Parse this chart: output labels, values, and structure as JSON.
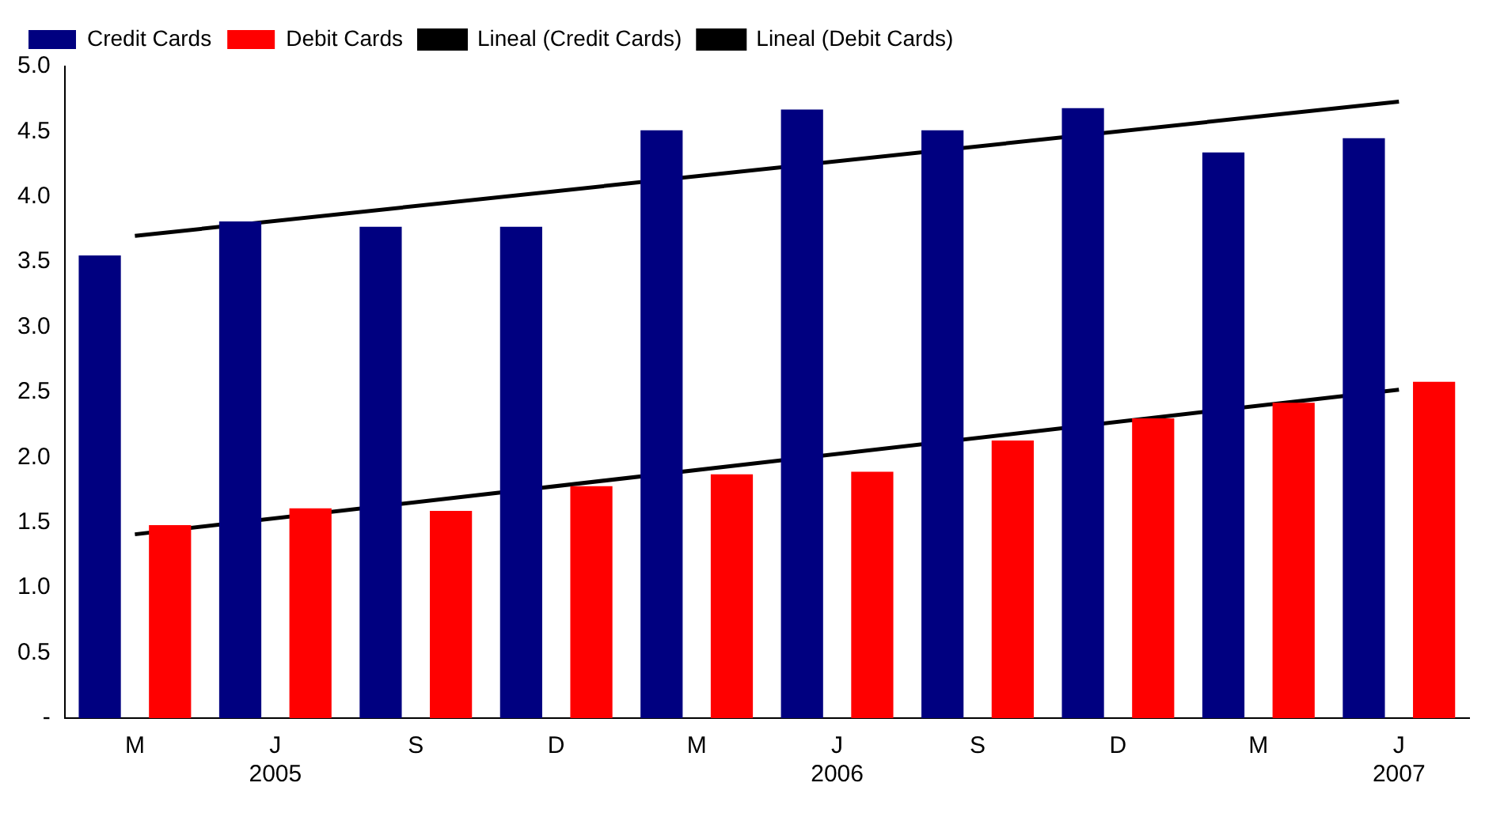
{
  "chart_data": {
    "type": "bar",
    "categories": [
      "M",
      "J\n2005",
      "S",
      "D",
      "M",
      "J\n2006",
      "S",
      "D",
      "M",
      "J\n2007"
    ],
    "series": [
      {
        "name": "Credit Cards",
        "color": "#000080",
        "values": [
          3.55,
          3.81,
          3.77,
          3.77,
          4.51,
          4.67,
          4.51,
          4.68,
          4.34,
          4.45
        ]
      },
      {
        "name": "Debit Cards",
        "color": "#ff0000",
        "values": [
          1.48,
          1.61,
          1.59,
          1.78,
          1.87,
          1.89,
          2.13,
          2.3,
          2.42,
          2.58
        ]
      },
      {
        "name": "Lineal (Credit Cards)",
        "type": "line",
        "color": "#000000",
        "values": [
          3.7,
          null,
          null,
          null,
          null,
          null,
          null,
          null,
          null,
          4.73
        ]
      },
      {
        "name": "Lineal (Debit Cards)",
        "type": "line",
        "color": "#000000",
        "values": [
          1.41,
          null,
          null,
          null,
          null,
          null,
          null,
          null,
          null,
          2.52
        ]
      }
    ],
    "ylim": [
      0,
      5
    ],
    "yticks": [
      {
        "value": 0,
        "label": "-"
      },
      0.5,
      {
        "value": 1,
        "label": "1.0"
      },
      1.5,
      {
        "value": 2,
        "label": "2.0"
      },
      2.5,
      {
        "value": 3,
        "label": "3.0"
      },
      3.5,
      {
        "value": 4,
        "label": "4.0"
      },
      4.5,
      {
        "value": 5,
        "label": "5.0"
      }
    ],
    "grid": false,
    "legend": "top left",
    "marker": "none",
    "line_style": "solid"
  }
}
